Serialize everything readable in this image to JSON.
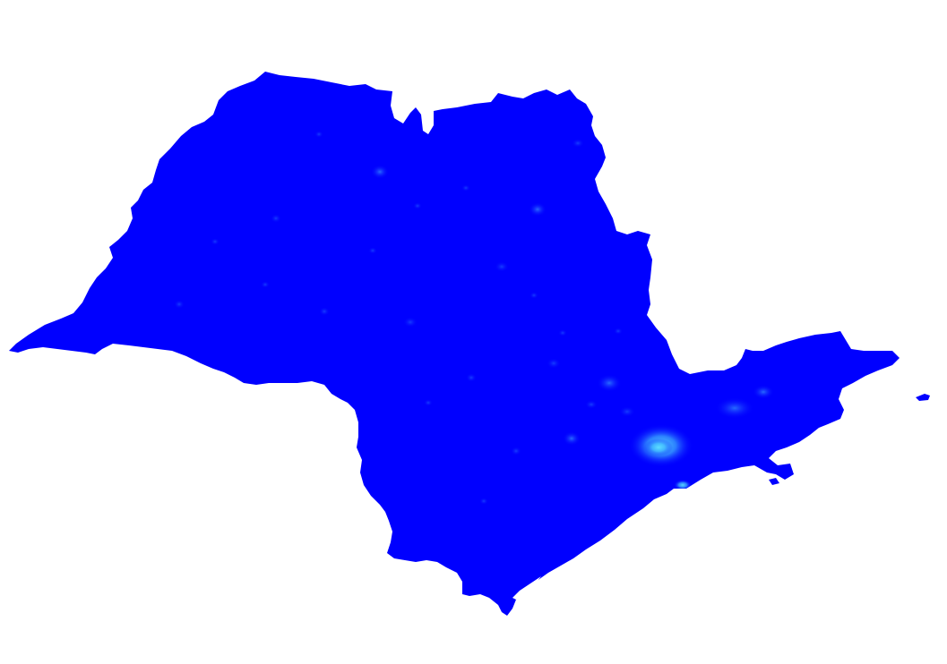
{
  "map": {
    "colors": {
      "background": "#ffffff",
      "land": "#0000ff",
      "urban_low": "#1a4dff",
      "urban_mid": "#2f7dff",
      "urban_high": "#3fb8ff",
      "urban_peak": "#5fe0ff"
    }
  }
}
